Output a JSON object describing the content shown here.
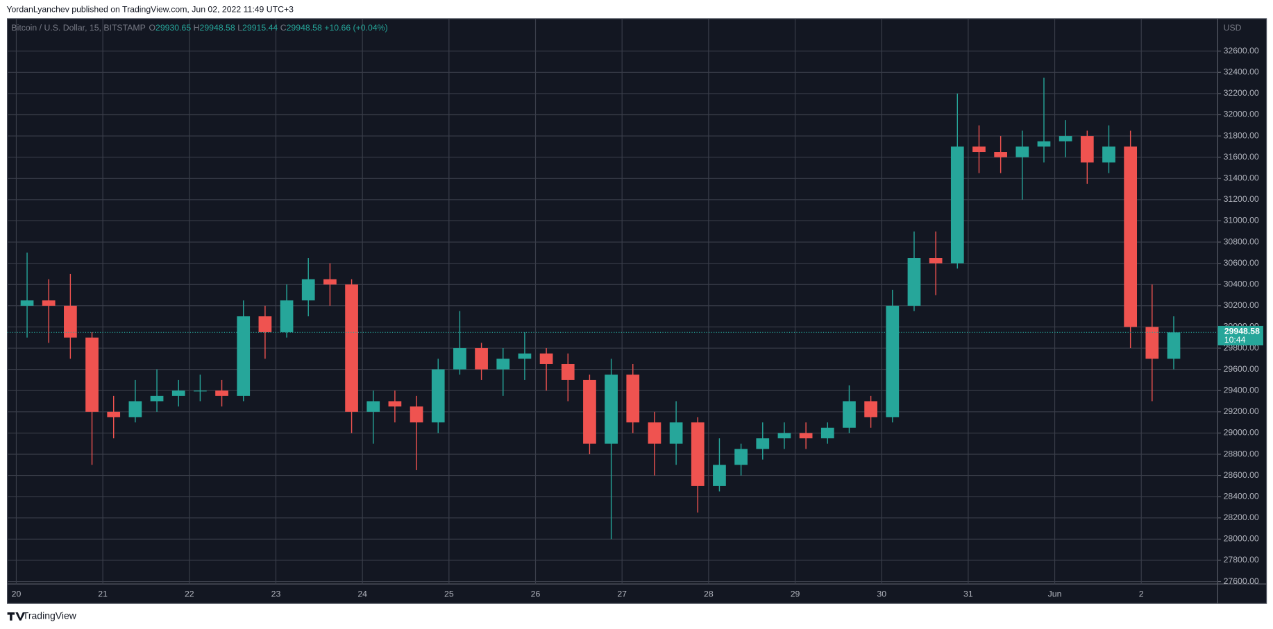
{
  "header": "YordanLyanchev published on TradingView.com, Jun 02, 2022 11:49 UTC+3",
  "footer": "TradingView",
  "chart_data": {
    "type": "candlestick",
    "symbol": "Bitcoin / U.S. Dollar, 15, BITSTAMP",
    "ohlc_labels": [
      "O",
      "H",
      "L",
      "C"
    ],
    "ohlc": [
      29930.65,
      29948.58,
      29915.44,
      29948.58
    ],
    "change": "+10.66 (+0.04%)",
    "currency": "USD",
    "categories": [
      "20",
      null,
      null,
      null,
      "21",
      null,
      null,
      null,
      "22",
      null,
      null,
      null,
      "23",
      null,
      null,
      null,
      "24",
      null,
      null,
      null,
      "25",
      null,
      null,
      null,
      "26",
      null,
      null,
      null,
      "27",
      null,
      null,
      null,
      "28",
      null,
      null,
      null,
      "29",
      null,
      null,
      null,
      "30",
      null,
      null,
      null,
      "31",
      null,
      null,
      null,
      "Jun",
      null,
      null,
      null,
      "2",
      null
    ],
    "open": [
      30200,
      30250,
      30200,
      29900,
      29200,
      29150,
      29300,
      29350,
      29400,
      29400,
      29350,
      30100,
      29950,
      30250,
      30450,
      30400,
      29200,
      29300,
      29250,
      29100,
      29600,
      29800,
      29600,
      29700,
      29750,
      29650,
      29500,
      28900,
      29550,
      29100,
      28900,
      29100,
      28500,
      28700,
      28850,
      28950,
      29000,
      28950,
      29050,
      29300,
      29150,
      30200,
      30650,
      30600,
      31700,
      31650,
      31600,
      31700,
      31750,
      31800,
      31550,
      31700,
      30000,
      29700
    ],
    "high": [
      30700,
      30450,
      30500,
      29950,
      29350,
      29500,
      29600,
      29500,
      29550,
      29500,
      30250,
      30200,
      30400,
      30650,
      30600,
      30450,
      29400,
      29400,
      29350,
      29700,
      30150,
      29850,
      29800,
      29950,
      29800,
      29750,
      29550,
      29700,
      29650,
      29200,
      29300,
      29150,
      28950,
      28900,
      29100,
      29100,
      29100,
      29100,
      29450,
      29350,
      30350,
      30900,
      30900,
      32200,
      31900,
      31800,
      31850,
      32350,
      31950,
      31850,
      31900,
      31850,
      30400,
      30100
    ],
    "low": [
      29900,
      29850,
      29700,
      28700,
      28950,
      29100,
      29200,
      29250,
      29300,
      29250,
      29300,
      29700,
      29900,
      30100,
      30200,
      29000,
      28900,
      29100,
      28650,
      29000,
      29550,
      29500,
      29350,
      29500,
      29400,
      29300,
      28800,
      28000,
      29000,
      28600,
      28700,
      28250,
      28450,
      28600,
      28750,
      28850,
      28850,
      28900,
      29000,
      29050,
      29100,
      30150,
      30300,
      30550,
      31450,
      31450,
      31200,
      31550,
      31600,
      31350,
      31450,
      29800,
      29300,
      29600
    ],
    "close": [
      30250,
      30200,
      29900,
      29200,
      29150,
      29300,
      29350,
      29400,
      29400,
      29350,
      30100,
      29950,
      30250,
      30450,
      30400,
      29200,
      29300,
      29250,
      29100,
      29600,
      29800,
      29600,
      29700,
      29750,
      29650,
      29500,
      28900,
      29550,
      29100,
      28900,
      29100,
      28500,
      28700,
      28850,
      28950,
      29000,
      28950,
      29050,
      29300,
      29150,
      30200,
      30650,
      30600,
      31700,
      31650,
      31600,
      31700,
      31750,
      31800,
      31550,
      31700,
      30000,
      29700,
      29948.58
    ],
    "up_color": "#26a69a",
    "down_color": "#ef5350",
    "last_price": 29948.58,
    "countdown": "10:44",
    "ylim": [
      27577,
      32906
    ],
    "yticks": [
      {
        "value": 27600,
        "label": "27600.00"
      },
      {
        "value": 27800,
        "label": "27800.00"
      },
      {
        "value": 28000,
        "label": "28000.00"
      },
      {
        "value": 28200,
        "label": "28200.00"
      },
      {
        "value": 28400,
        "label": "28400.00"
      },
      {
        "value": 28600,
        "label": "28600.00"
      },
      {
        "value": 28800,
        "label": "28800.00"
      },
      {
        "value": 29000,
        "label": "29000.00"
      },
      {
        "value": 29200,
        "label": "29200.00"
      },
      {
        "value": 29400,
        "label": "29400.00"
      },
      {
        "value": 29600,
        "label": "29600.00"
      },
      {
        "value": 29800,
        "label": "29800.00"
      },
      {
        "value": 30000,
        "label": "30000.00"
      },
      {
        "value": 30200,
        "label": "30200.00"
      },
      {
        "value": 30400,
        "label": "30400.00"
      },
      {
        "value": 30600,
        "label": "30600.00"
      },
      {
        "value": 30800,
        "label": "30800.00"
      },
      {
        "value": 31000,
        "label": "31000.00"
      },
      {
        "value": 31200,
        "label": "31200.00"
      },
      {
        "value": 31400,
        "label": "31400.00"
      },
      {
        "value": 31600,
        "label": "31600.00"
      },
      {
        "value": 31800,
        "label": "31800.00"
      },
      {
        "value": 32000,
        "label": "32000.00"
      },
      {
        "value": 32200,
        "label": "32200.00"
      },
      {
        "value": 32400,
        "label": "32400.00"
      },
      {
        "value": 32600,
        "label": "32600.00"
      }
    ],
    "grid": true
  }
}
